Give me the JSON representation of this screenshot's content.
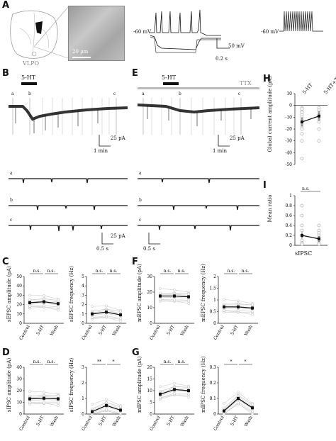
{
  "panel_labels": {
    "A": "A",
    "B": "B",
    "C": "C",
    "D": "D",
    "E": "E",
    "F": "F",
    "G": "G",
    "H": "H",
    "I": "I"
  },
  "panel_a": {
    "region_label": "VLPO",
    "scale_micro": "20 µm",
    "hold1": "-60 mV",
    "hold2": "-60 mV",
    "scale_v": "50 mV",
    "scale_t": "0.2 s"
  },
  "panel_b": {
    "drug": "5-HT",
    "scale_i": "25 pA",
    "scale_t": "1 min",
    "markers": [
      "a",
      "b",
      "c"
    ],
    "zoom_scale_i": "25 pA",
    "zoom_scale_t": "0.5 s"
  },
  "panel_e": {
    "drug": "5-HT",
    "ttx": "TTX",
    "scale_i": "25 pA",
    "scale_t": "1 min",
    "markers": [
      "a",
      "b",
      "c"
    ],
    "zoom_scale_t": "0.5 s"
  },
  "panel_h": {
    "ylabel": "Global current amplitude (pA)",
    "categories": [
      "5-HT",
      "5-HT+TTX"
    ],
    "yticks": [
      "10",
      "0",
      "-10",
      "-20",
      "-30",
      "-40",
      "-50"
    ]
  },
  "panel_i": {
    "ylabel": "Mean ratio",
    "sig": "n.s.",
    "yticks": [
      "1",
      "0.8",
      "0.6",
      "0.4",
      "0.2",
      "0"
    ],
    "xlabel": "sIPSC"
  },
  "summary_xcats": [
    "Control",
    "5-HT",
    "Wash"
  ],
  "chart_data": [
    {
      "type": "line",
      "panel": "C-left",
      "ylabel": "sEPSC amplitude (pA)",
      "ylim": [
        0,
        50
      ],
      "yticks": [
        "50",
        "40",
        "30",
        "20",
        "10",
        "0"
      ],
      "categories": [
        "Control",
        "5-HT",
        "Wash"
      ],
      "series": [
        {
          "values": [
            22,
            23,
            21
          ]
        }
      ],
      "sig": [
        "n.s.",
        "n.s."
      ]
    },
    {
      "type": "line",
      "panel": "C-right",
      "ylabel": "sEPSC frequency (Hz)",
      "ylim": [
        0,
        5
      ],
      "yticks": [
        "5",
        "4",
        "3",
        "2",
        "1",
        "0"
      ],
      "categories": [
        "Control",
        "5-HT",
        "Wash"
      ],
      "series": [
        {
          "values": [
            1.0,
            1.2,
            0.9
          ]
        }
      ],
      "sig": [
        "n.s.",
        "n.s."
      ]
    },
    {
      "type": "line",
      "panel": "D-left",
      "ylabel": "sIPSC amplitude (pA)",
      "ylim": [
        0,
        40
      ],
      "yticks": [
        "40",
        "30",
        "20",
        "10",
        "0"
      ],
      "categories": [
        "Control",
        "5-HT",
        "Wash"
      ],
      "series": [
        {
          "values": [
            13,
            13.5,
            13
          ]
        }
      ],
      "sig": [
        "n.s.",
        "n.s."
      ]
    },
    {
      "type": "line",
      "panel": "D-right",
      "ylabel": "sIPSC frequency (Hz)",
      "ylim": [
        0,
        3
      ],
      "yticks": [
        "3",
        "2",
        "1",
        "0"
      ],
      "categories": [
        "Control",
        "5-HT",
        "Wash"
      ],
      "series": [
        {
          "values": [
            0.15,
            0.55,
            0.25
          ]
        }
      ],
      "sig": [
        "**",
        "*"
      ]
    },
    {
      "type": "line",
      "panel": "F-left",
      "ylabel": "mEPSC amplitude (pA)",
      "ylim": [
        0,
        30
      ],
      "yticks": [
        "30",
        "20",
        "10",
        "0"
      ],
      "categories": [
        "Control",
        "5-HT",
        "Wash"
      ],
      "series": [
        {
          "values": [
            17.5,
            17.5,
            17
          ]
        }
      ],
      "sig": [
        "n.s.",
        "n.s."
      ]
    },
    {
      "type": "line",
      "panel": "F-right",
      "ylabel": "mEPSC frequency (Hz)",
      "ylim": [
        0,
        2
      ],
      "yticks": [
        "2",
        "1.5",
        "1",
        "0.5",
        "0"
      ],
      "categories": [
        "Control",
        "5-HT",
        "Wash"
      ],
      "series": [
        {
          "values": [
            0.7,
            0.7,
            0.65
          ]
        }
      ],
      "sig": [
        "n.s.",
        "n.s."
      ]
    },
    {
      "type": "line",
      "panel": "G-left",
      "ylabel": "mIPSC amplitude (pA)",
      "ylim": [
        0,
        20
      ],
      "yticks": [
        "20",
        "15",
        "10",
        "5",
        "0"
      ],
      "categories": [
        "Control",
        "5-HT",
        "Wash"
      ],
      "series": [
        {
          "values": [
            8.5,
            10.5,
            10
          ]
        }
      ],
      "sig": [
        "n.s.",
        "n.s."
      ]
    },
    {
      "type": "line",
      "panel": "G-right",
      "ylabel": "mIPSC frequency (Hz)",
      "ylim": [
        0,
        0.3
      ],
      "yticks": [
        "0.3",
        "0.2",
        "0.1",
        "0"
      ],
      "categories": [
        "Control",
        "5-HT",
        "Wash"
      ],
      "series": [
        {
          "values": [
            0.02,
            0.1,
            0.04
          ]
        }
      ],
      "sig": [
        "*",
        "*"
      ]
    }
  ]
}
